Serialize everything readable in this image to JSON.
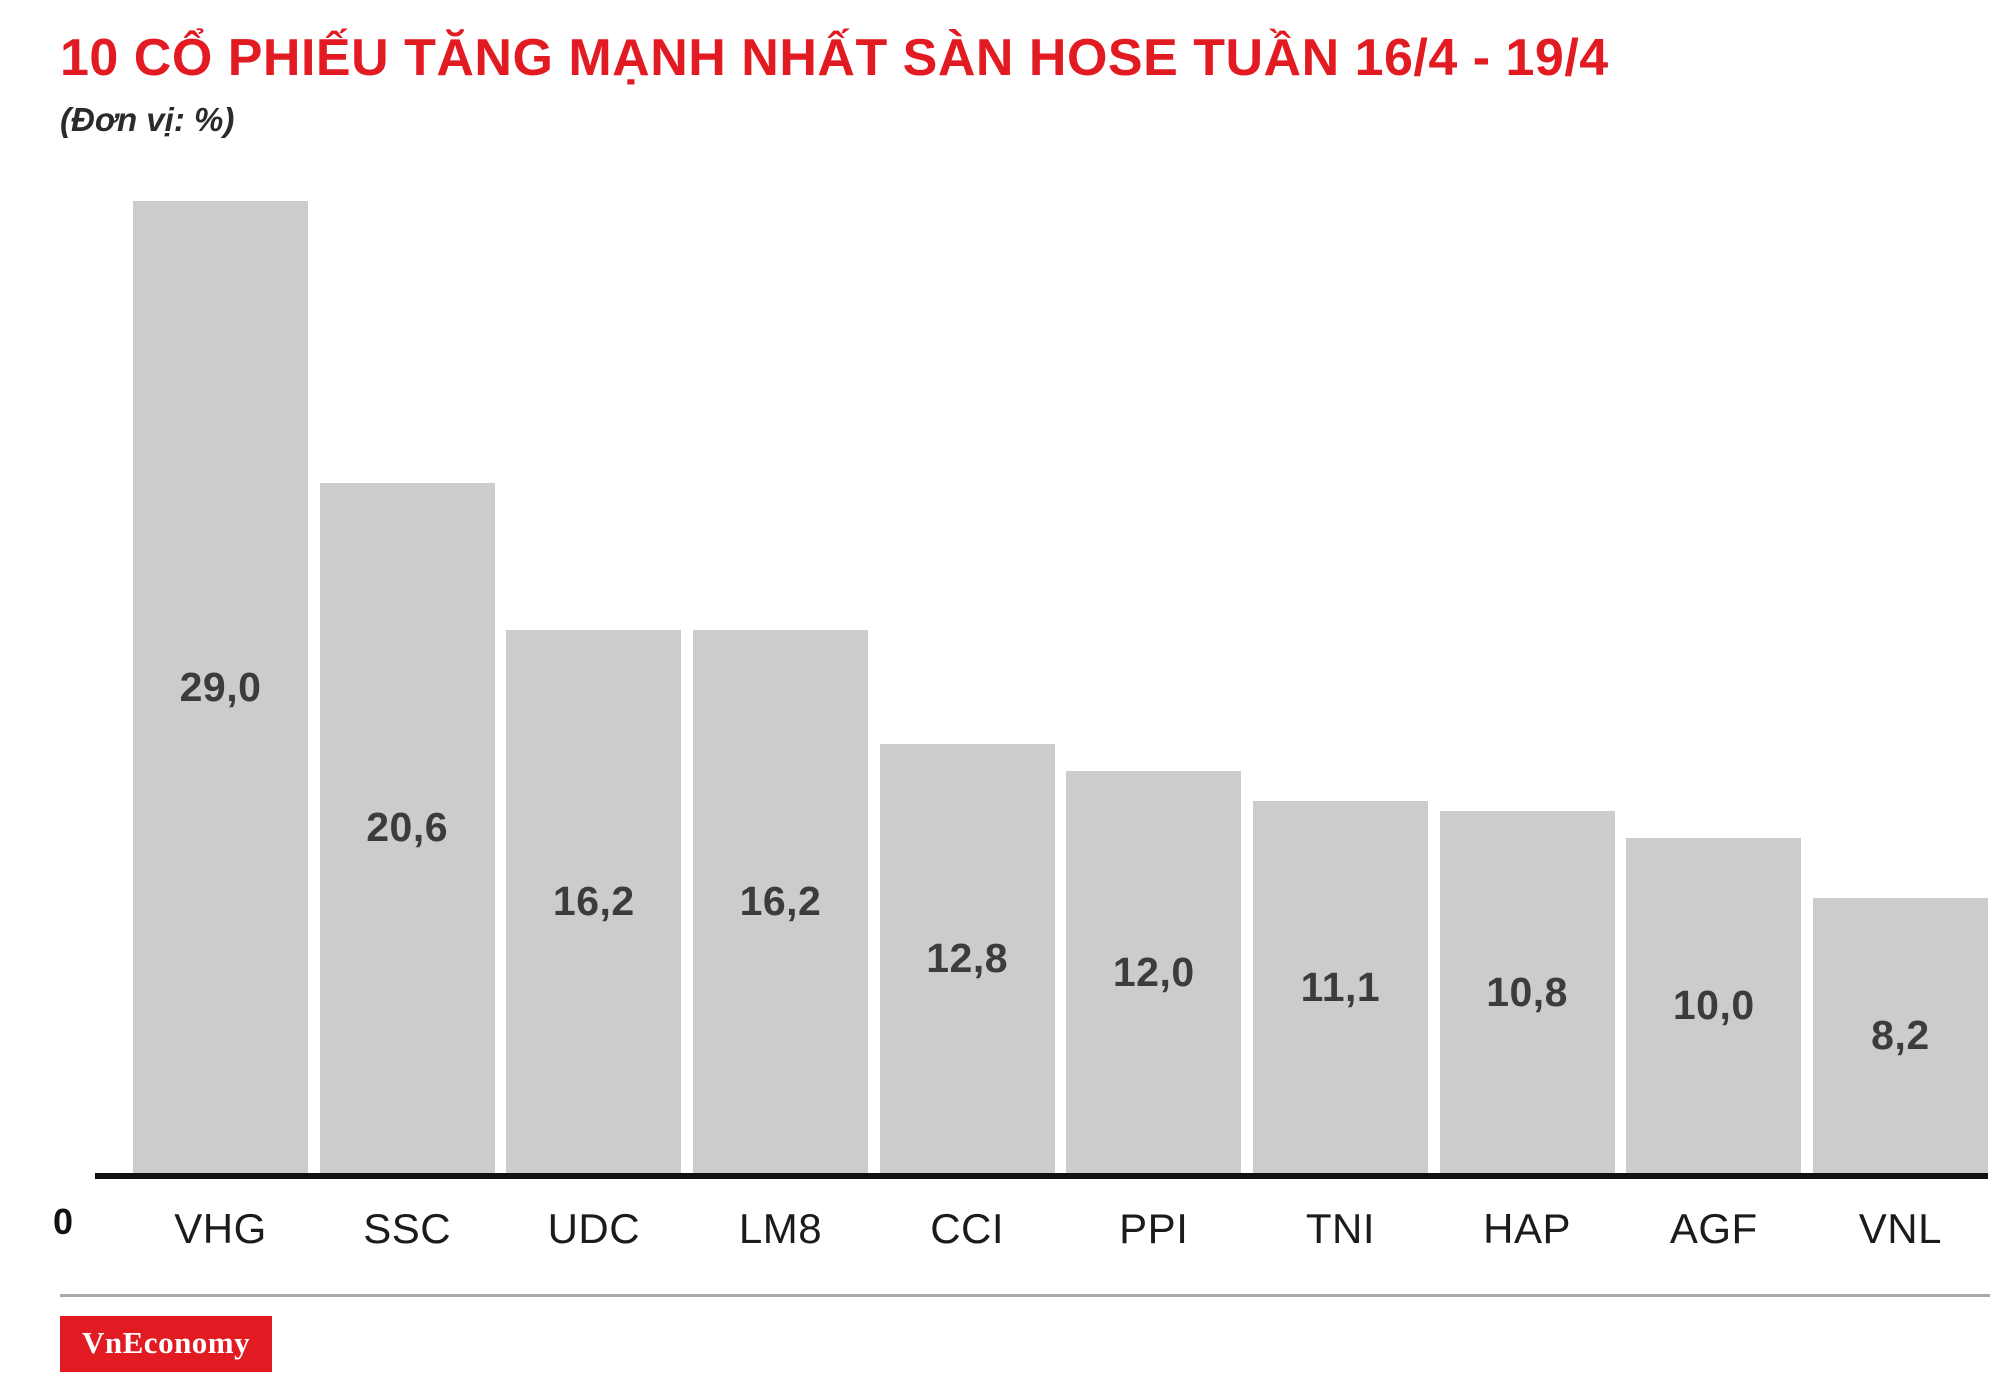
{
  "header": {
    "title": "10 CỔ PHIẾU TĂNG MẠNH NHẤT SÀN HOSE TUẦN 16/4 - 19/4",
    "subtitle": "(Đơn vị: %)"
  },
  "chart_data": {
    "type": "bar",
    "title": "10 CỔ PHIẾU TĂNG MẠNH NHẤT SÀN HOSE TUẦN 16/4 - 19/4",
    "unit": "%",
    "categories": [
      "VHG",
      "SSC",
      "UDC",
      "LM8",
      "CCI",
      "PPI",
      "TNI",
      "HAP",
      "AGF",
      "VNL"
    ],
    "values": [
      29.0,
      20.6,
      16.2,
      16.2,
      12.8,
      12.0,
      11.1,
      10.8,
      10.0,
      8.2
    ],
    "value_labels": [
      "29,0",
      "20,6",
      "16,2",
      "16,2",
      "12,8",
      "12,0",
      "11,1",
      "10,8",
      "10,0",
      "8,2"
    ],
    "xlabel": "",
    "ylabel": "",
    "ylim": [
      0,
      29
    ],
    "baseline_label": "0",
    "grid": false,
    "legend": "none",
    "bar_color": "#cccccc"
  },
  "colors": {
    "accent_red": "#e21b22",
    "bar": "#cccccc",
    "value_label": "#3c3c3c",
    "axis": "#111111"
  },
  "footer": {
    "logo_text": "VnEconomy"
  }
}
